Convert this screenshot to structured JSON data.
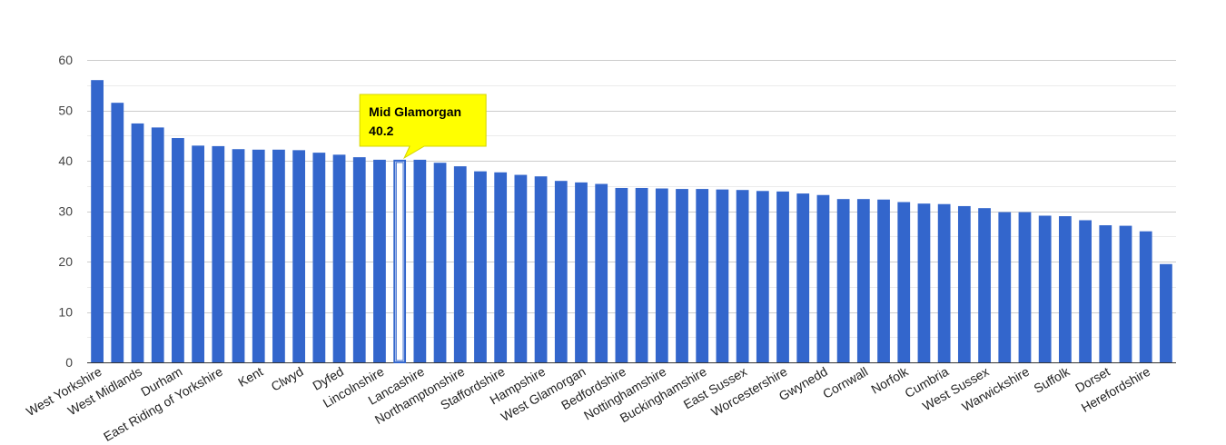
{
  "chart_data": {
    "type": "bar",
    "title": "",
    "xlabel": "",
    "ylabel": "",
    "ylim": [
      0,
      60
    ],
    "yticks": [
      0,
      10,
      20,
      30,
      40,
      50,
      60
    ],
    "grid": true,
    "categories": [
      "West Yorkshire",
      "",
      "West Midlands",
      "",
      "Durham",
      "",
      "East Riding of Yorkshire",
      "",
      "Kent",
      "",
      "Clwyd",
      "",
      "Dyfed",
      "",
      "Lincolnshire",
      "",
      "Lancashire",
      "",
      "Northamptonshire",
      "",
      "Staffordshire",
      "",
      "Hampshire",
      "",
      "West Glamorgan",
      "",
      "Bedfordshire",
      "",
      "Nottinghamshire",
      "",
      "Buckinghamshire",
      "",
      "East Sussex",
      "",
      "Worcestershire",
      "",
      "Gwynedd",
      "",
      "Cornwall",
      "",
      "Norfolk",
      "",
      "Cumbria",
      "",
      "West Sussex",
      "",
      "Warwickshire",
      "",
      "Suffolk",
      "",
      "Dorset",
      "",
      "Herefordshire",
      ""
    ],
    "series": [
      {
        "values": [
          56.0,
          51.5,
          47.4,
          46.6,
          44.5,
          43.0,
          42.9,
          42.3,
          42.2,
          42.2,
          42.1,
          41.6,
          41.2,
          40.7,
          40.2,
          40.2,
          40.2,
          39.6,
          38.9,
          37.9,
          37.7,
          37.2,
          36.9,
          36.0,
          35.7,
          35.4,
          34.6,
          34.6,
          34.5,
          34.4,
          34.4,
          34.3,
          34.2,
          34.0,
          33.9,
          33.5,
          33.2,
          32.4,
          32.4,
          32.3,
          31.8,
          31.5,
          31.4,
          31.0,
          30.6,
          29.8,
          29.8,
          29.1,
          29.0,
          28.2,
          27.2,
          27.1,
          26.0,
          19.5
        ]
      }
    ],
    "colors": {
      "bar": "#3366cc",
      "highlight_fill": "#ffffff",
      "grid": "#cccccc",
      "tooltip_bg": "#ffff00"
    },
    "highlight_index": 15,
    "tooltip": {
      "label": "Mid Glamorgan",
      "value": "40.2"
    }
  }
}
